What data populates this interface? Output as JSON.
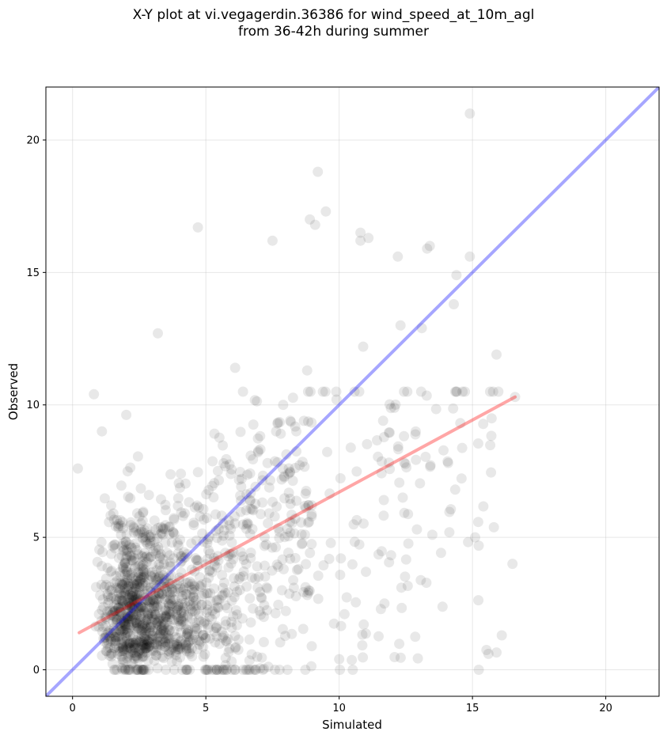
{
  "chart_data": {
    "type": "scatter",
    "title": "X-Y plot at vi.vegagerdin.36386 for wind_speed_at_10m_agl\nfrom 36-42h during summer",
    "xlabel": "Simulated",
    "ylabel": "Observed",
    "xlim": [
      -1,
      22
    ],
    "ylim": [
      -1,
      22
    ],
    "xticks": [
      0,
      5,
      10,
      15,
      20
    ],
    "yticks": [
      0,
      5,
      10,
      15,
      20
    ],
    "grid": true,
    "point_color": "#000000",
    "point_alpha": 0.09,
    "reference_line": {
      "description": "y = x",
      "color": "#0000ff",
      "x": [
        -1,
        22
      ],
      "y": [
        -1,
        22
      ]
    },
    "fit_line": {
      "color": "#ff0000",
      "x": [
        0.25,
        16.6
      ],
      "y": [
        1.4,
        10.3
      ]
    },
    "notable_points": {
      "x": [
        14.9,
        9.2,
        9.5,
        8.9,
        9.1,
        4.7,
        7.5,
        10.8,
        10.8,
        11.1,
        12.2,
        13.3,
        13.4,
        14.9,
        14.4,
        3.2,
        6.1,
        10.9,
        0.8,
        1.1,
        0.2,
        15.6,
        16.1,
        15.9,
        10.0,
        11.7,
        16.5,
        16.6,
        13.1,
        9.9,
        15.1,
        14.3,
        12.3,
        8.8,
        7.9,
        10.2
      ],
      "y": [
        21.0,
        18.8,
        17.3,
        17.0,
        16.8,
        16.7,
        16.2,
        16.5,
        16.2,
        16.3,
        15.6,
        15.9,
        16.0,
        15.6,
        14.9,
        12.7,
        11.4,
        12.2,
        10.4,
        9.0,
        7.6,
        0.6,
        1.3,
        11.9,
        0.4,
        2.5,
        4.0,
        10.3,
        12.9,
        10.2,
        5.0,
        13.8,
        13.0,
        11.3,
        10.0,
        2.1
      ]
    },
    "dense_cloud": {
      "approx_count": 1500,
      "x_range": [
        0.2,
        16.5
      ],
      "y_range": [
        0.0,
        10.5
      ],
      "center": [
        2.5,
        2.5
      ]
    }
  }
}
